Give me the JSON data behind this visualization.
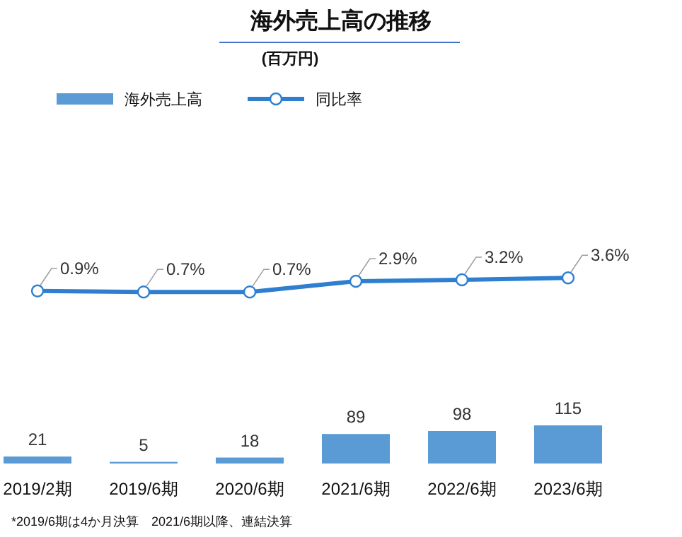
{
  "chart_data": [
    {
      "type": "bar",
      "categories": [
        "2019/2期",
        "2019/6期",
        "2020/6期",
        "2021/6期",
        "2022/6期",
        "2023/6期"
      ],
      "series": [
        {
          "name": "海外売上高",
          "color": "#5b9bd5",
          "values": [
            21,
            5,
            18,
            89,
            98,
            115
          ],
          "value_labels": [
            "21",
            "5",
            "18",
            "89",
            "98",
            "115"
          ]
        }
      ],
      "tick_labels": "x",
      "legend": "top left",
      "annotations": [
        "*2019/6期は4か月決算　2021/6期以降、連結決算"
      ]
    },
    {
      "type": "line",
      "title": "海外売上高の推移",
      "subtitle": "(百万円)",
      "series": [
        {
          "name": "同比率",
          "color": "#2e7fd0",
          "values": [
            0.9,
            0.7,
            0.7,
            2.9,
            3.2,
            3.6
          ],
          "value_labels": [
            "0.9%",
            "0.7%",
            "0.7%",
            "2.9%",
            "3.2%",
            "3.6%"
          ]
        }
      ],
      "tick_labels": false,
      "legend": "top left",
      "marker": "circle"
    }
  ]
}
